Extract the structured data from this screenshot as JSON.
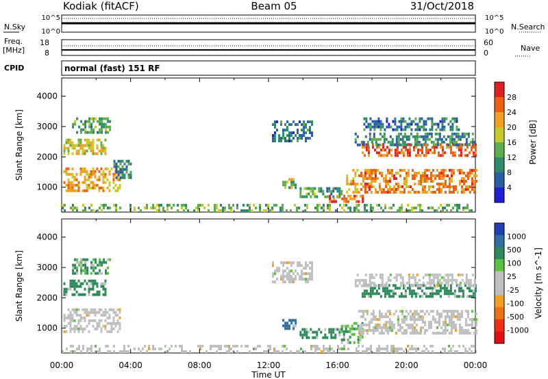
{
  "header": {
    "title_left": "Kodiak (fitACF)",
    "title_center": "Beam 05",
    "title_right": "31/Oct/2018"
  },
  "status_panel": {
    "nsky_label": "N.Sky",
    "nsky_ticks": [
      "10^5",
      "10^0"
    ],
    "nsearch_label": "N.Search",
    "nsearch_ticks": [
      "10^5",
      "10^0"
    ],
    "freq_label": "Freq.",
    "freq_unit": "[MHz]",
    "freq_ticks": [
      "18",
      "8"
    ],
    "nave_label": "Nave",
    "nave_ticks": [
      "60",
      "0"
    ],
    "cpid_label": "CPID",
    "cpid_text": "normal (fast) 151 RF"
  },
  "colors": {
    "power_scale": [
      "#1f1fd4",
      "#2a5fa8",
      "#2e8a6a",
      "#5cae4a",
      "#c9c92a",
      "#f0a020",
      "#ee6010",
      "#e02020"
    ],
    "velocity_scale": [
      "#1f3fb0",
      "#2e6fa0",
      "#2e8a5a",
      "#5cc040",
      "#bfbfbf",
      "#bfbfbf",
      "#f0a020",
      "#ee7010",
      "#ee3010",
      "#e01010"
    ]
  },
  "chart_data": [
    {
      "type": "heatmap",
      "name": "power",
      "ylabel": "Slant Range [km]",
      "yticks": [
        1000,
        2000,
        3000,
        4000
      ],
      "ylim": [
        180,
        4600
      ],
      "xlim_hours": [
        0,
        24
      ],
      "colorbar_label": "Power [dB]",
      "colorbar_ticks": [
        "28",
        "24",
        "20",
        "16",
        "12",
        "8",
        "4"
      ],
      "colorbar_range": [
        0,
        32
      ],
      "regions": [
        {
          "t0": 0.1,
          "t1": 3.4,
          "r0": 850,
          "r1": 1650,
          "level": 22
        },
        {
          "t0": 0.1,
          "t1": 2.5,
          "r0": 2100,
          "r1": 2600,
          "level": 18
        },
        {
          "t0": 0.6,
          "t1": 2.8,
          "r0": 2800,
          "r1": 3300,
          "level": 12
        },
        {
          "t0": 3.0,
          "t1": 4.0,
          "r0": 1300,
          "r1": 1900,
          "level": 10
        },
        {
          "t0": 12.2,
          "t1": 14.5,
          "r0": 2500,
          "r1": 3200,
          "level": 8
        },
        {
          "t0": 12.8,
          "t1": 13.6,
          "r0": 950,
          "r1": 1300,
          "level": 16
        },
        {
          "t0": 13.8,
          "t1": 16.2,
          "r0": 700,
          "r1": 1000,
          "level": 12
        },
        {
          "t0": 15.5,
          "t1": 17.5,
          "r0": 550,
          "r1": 750,
          "level": 26
        },
        {
          "t0": 16.5,
          "t1": 17.2,
          "r0": 800,
          "r1": 1600,
          "level": 20
        },
        {
          "t0": 17.2,
          "t1": 24.0,
          "r0": 800,
          "r1": 1600,
          "level": 24
        },
        {
          "t0": 17.4,
          "t1": 24.0,
          "r0": 2050,
          "r1": 2450,
          "level": 26
        },
        {
          "t0": 17.0,
          "t1": 24.0,
          "r0": 2400,
          "r1": 2800,
          "level": 10
        },
        {
          "t0": 17.5,
          "t1": 23.0,
          "r0": 2900,
          "r1": 3300,
          "level": 8
        },
        {
          "t0": 0.0,
          "t1": 24.0,
          "r0": 180,
          "r1": 450,
          "level": 14
        }
      ]
    },
    {
      "type": "heatmap",
      "name": "velocity",
      "ylabel": "Slant Range [km]",
      "yticks": [
        1000,
        2000,
        3000,
        4000
      ],
      "ylim": [
        180,
        4600
      ],
      "xlim_hours": [
        0,
        24
      ],
      "xticks": [
        "00:00",
        "04:00",
        "08:00",
        "12:00",
        "16:00",
        "20:00",
        "00:00"
      ],
      "xlabel": "Time UT",
      "colorbar_label": "Velocity [m s^-1]",
      "colorbar_ticks": [
        "1000",
        "500",
        "100",
        "25",
        "-25",
        "-100",
        "-500",
        "-1000"
      ],
      "regions": [
        {
          "t0": 0.1,
          "t1": 3.4,
          "r0": 850,
          "r1": 1650,
          "level": "ground"
        },
        {
          "t0": 0.1,
          "t1": 2.5,
          "r0": 2100,
          "r1": 2600,
          "level": 150
        },
        {
          "t0": 0.6,
          "t1": 2.8,
          "r0": 2800,
          "r1": 3300,
          "level": 120
        },
        {
          "t0": 12.2,
          "t1": 14.5,
          "r0": 2500,
          "r1": 3200,
          "level": "ground"
        },
        {
          "t0": 12.8,
          "t1": 13.6,
          "r0": 950,
          "r1": 1300,
          "level": 400
        },
        {
          "t0": 13.8,
          "t1": 16.2,
          "r0": 700,
          "r1": 1000,
          "level": 150
        },
        {
          "t0": 16.2,
          "t1": 17.4,
          "r0": 500,
          "r1": 1200,
          "level": 80
        },
        {
          "t0": 17.2,
          "t1": 24.0,
          "r0": 800,
          "r1": 1600,
          "level": "ground"
        },
        {
          "t0": 17.4,
          "t1": 24.0,
          "r0": 2050,
          "r1": 2450,
          "level": 200
        },
        {
          "t0": 17.0,
          "t1": 24.0,
          "r0": 2400,
          "r1": 2800,
          "level": "ground"
        },
        {
          "t0": 0.0,
          "t1": 24.0,
          "r0": 180,
          "r1": 450,
          "level": "ground"
        }
      ]
    }
  ]
}
